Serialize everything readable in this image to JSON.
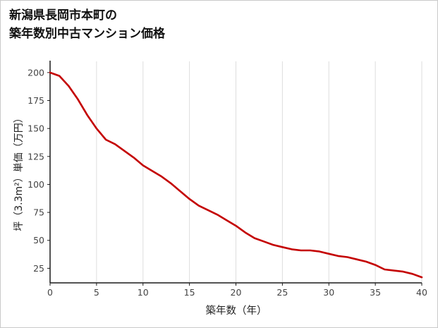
{
  "page": {
    "title_line1": "新潟県長岡市本町の",
    "title_line2": "築年数別中古マンション価格"
  },
  "chart_data": {
    "type": "line",
    "title": "新潟県長岡市本町の築年数別中古マンション価格",
    "xlabel": "築年数（年）",
    "ylabel": "坪（3.3m²）単価（万円）",
    "x": [
      0,
      1,
      2,
      3,
      4,
      5,
      6,
      7,
      8,
      9,
      10,
      11,
      12,
      13,
      14,
      15,
      16,
      17,
      18,
      19,
      20,
      21,
      22,
      23,
      24,
      25,
      26,
      27,
      28,
      29,
      30,
      31,
      32,
      33,
      34,
      35,
      36,
      37,
      38,
      39,
      40
    ],
    "values": [
      200,
      197,
      188,
      176,
      162,
      150,
      140,
      136,
      130,
      124,
      117,
      112,
      107,
      101,
      94,
      87,
      81,
      77,
      73,
      68,
      63,
      57,
      52,
      49,
      46,
      44,
      42,
      41,
      41,
      40,
      38,
      36,
      35,
      33,
      31,
      28,
      24,
      23,
      22,
      20,
      17
    ],
    "xlim": [
      0,
      40
    ],
    "ylim": [
      12,
      210
    ],
    "xticks": [
      0,
      5,
      10,
      15,
      20,
      25,
      30,
      35,
      40
    ],
    "yticks": [
      25,
      50,
      75,
      100,
      125,
      150,
      175,
      200
    ],
    "line_color": "#c40000",
    "axis_color": "#1a1a1a",
    "grid_color": "#dddddd",
    "tick_label_color": "#444444",
    "grid": "vertical-only",
    "legend": false
  }
}
